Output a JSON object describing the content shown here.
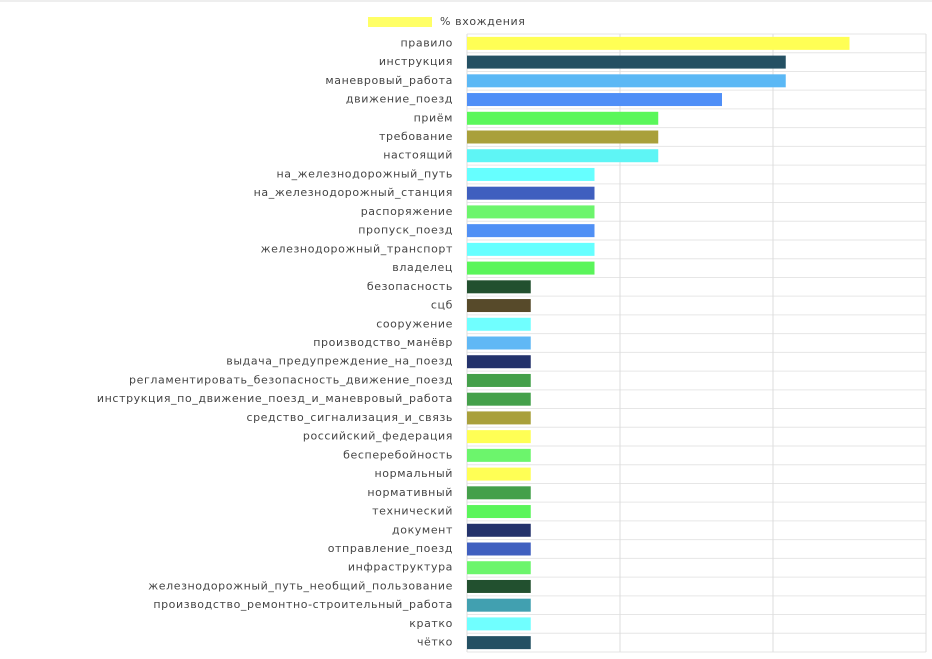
{
  "chart_data": {
    "type": "barh",
    "categories": [
      "правило",
      "инструкция",
      "маневровый_работа",
      "движение_поезд",
      "приём",
      "требование",
      "настоящий",
      "на_железнодорожный_путь",
      "на_железнодорожный_станция",
      "распоряжение",
      "пропуск_поезд",
      "железнодорожный_транспорт",
      "владелец",
      "безопасность",
      "сцб",
      "сооружение",
      "производство_манёвр",
      "выдача_предупреждение_на_поезд",
      "регламентировать_безопасность_движение_поезд",
      "инструкция_по_движение_поезд_и_маневровый_работа",
      "средство_сигнализация_и_связь",
      "российский_федерация",
      "бесперебойность",
      "нормальный",
      "нормативный",
      "технический",
      "документ",
      "отправление_поезд",
      "инфраструктура",
      "железнодорожный_путь_необщий_пользование",
      "производство_ремонтно-строительный_работа",
      "кратко",
      "чётко"
    ],
    "series": [
      {
        "name": "% вхождения",
        "color": "#ffff66",
        "values": [
          6,
          5,
          5,
          4,
          3,
          3,
          3,
          2,
          2,
          2,
          2,
          2,
          2,
          1,
          1,
          1,
          1,
          1,
          1,
          1,
          1,
          1,
          1,
          1,
          1,
          1,
          1,
          1,
          1,
          1,
          1,
          1,
          1
        ],
        "bar_colors": [
          "#ffff55",
          "#245063",
          "#5bb8f5",
          "#4f8ff7",
          "#5af75a",
          "#a9a03b",
          "#5ef5f5",
          "#66ffff",
          "#3f5fbf",
          "#6cf56c",
          "#5090f5",
          "#66ffff",
          "#5af55a",
          "#22502f",
          "#574a2a",
          "#70ffff",
          "#60b8f5",
          "#23326b",
          "#44a04a",
          "#44a04a",
          "#a9a03b",
          "#ffff55",
          "#6cf56c",
          "#ffff55",
          "#44a04a",
          "#5af55a",
          "#23326b",
          "#3f5fbf",
          "#6cf56c",
          "#22502f",
          "#41a0b0",
          "#70ffff",
          "#245063"
        ]
      }
    ],
    "xlim": [
      0,
      7.2
    ],
    "xticks": [
      0,
      2.4,
      4.8,
      7.2
    ],
    "grid": true,
    "legend": "top"
  }
}
